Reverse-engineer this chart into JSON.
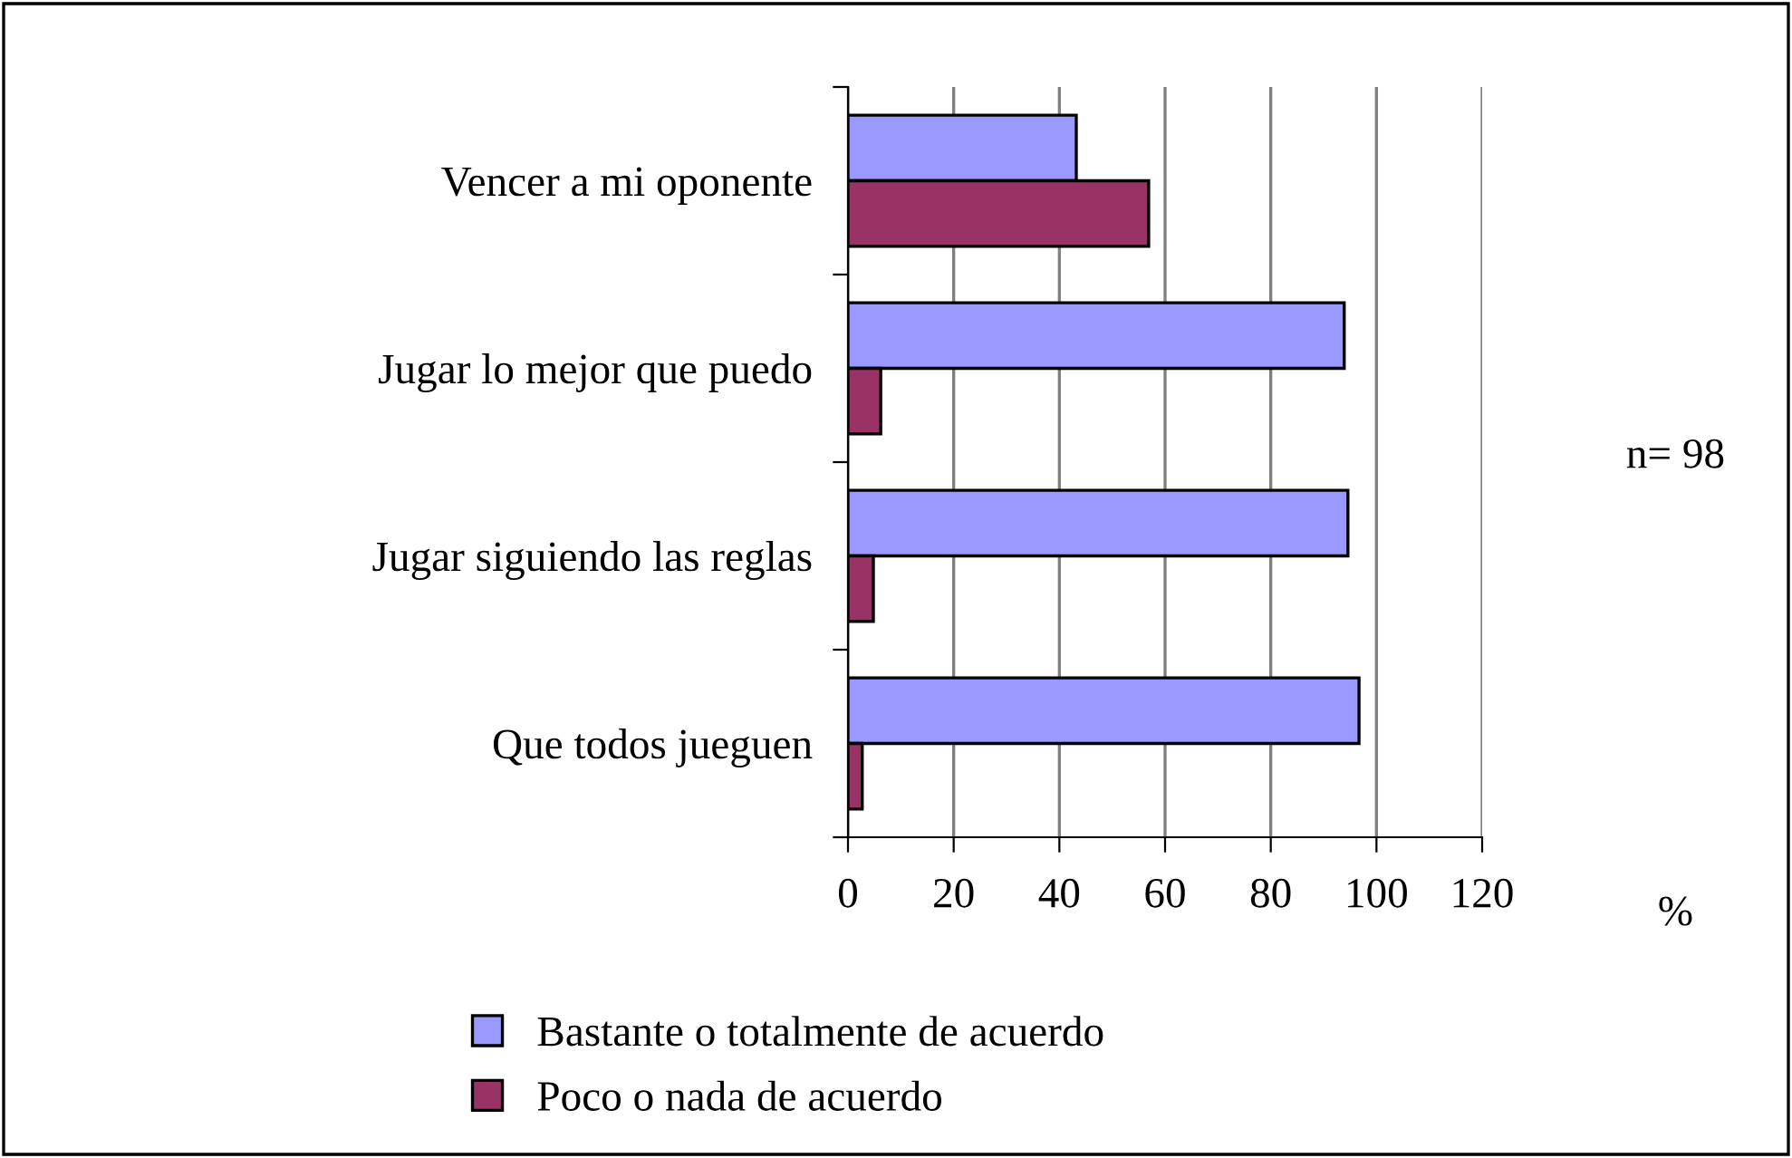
{
  "chart_data": {
    "type": "bar",
    "orientation": "horizontal",
    "categories": [
      "Vencer a mi oponente",
      "Jugar lo mejor que puedo",
      "Jugar siguiendo las reglas",
      "Que todos jueguen"
    ],
    "series": [
      {
        "name": "Bastante o totalmente de acuerdo",
        "color": "#9999ff",
        "values": [
          43.2,
          93.9,
          94.6,
          96.7
        ]
      },
      {
        "name": "Poco o nada de acuerdo",
        "color": "#993366",
        "values": [
          56.9,
          6.2,
          4.8,
          2.7
        ]
      }
    ],
    "xlim": [
      0,
      120
    ],
    "xticks": [
      0,
      20,
      40,
      60,
      80,
      100,
      120
    ],
    "grid": "x",
    "legend": "bottom",
    "annotations": [
      "n= 98",
      "%"
    ]
  }
}
